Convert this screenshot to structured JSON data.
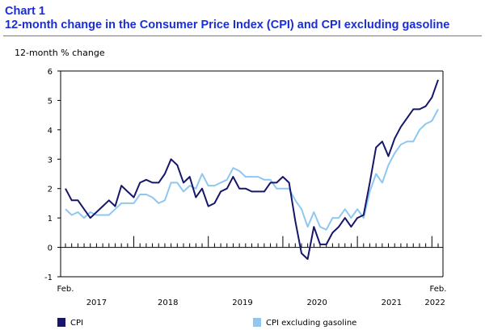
{
  "header": {
    "chart_number": "Chart 1",
    "title": "12-month change in the Consumer Price Index (CPI) and CPI excluding gasoline"
  },
  "colors": {
    "cpi": "#16166b",
    "cpi_ex_gas": "#8ec8f0",
    "axis": "#000000",
    "title": "#1a2ed6"
  },
  "chart_data": {
    "type": "line",
    "ylabel": "12-month % change",
    "ylim": [
      -1,
      6
    ],
    "yticks": [
      -1,
      0,
      1,
      2,
      3,
      4,
      5,
      6
    ],
    "grid": false,
    "legend_position": "bottom",
    "x": [
      "2017-02",
      "2017-03",
      "2017-04",
      "2017-05",
      "2017-06",
      "2017-07",
      "2017-08",
      "2017-09",
      "2017-10",
      "2017-11",
      "2017-12",
      "2018-01",
      "2018-02",
      "2018-03",
      "2018-04",
      "2018-05",
      "2018-06",
      "2018-07",
      "2018-08",
      "2018-09",
      "2018-10",
      "2018-11",
      "2018-12",
      "2019-01",
      "2019-02",
      "2019-03",
      "2019-04",
      "2019-05",
      "2019-06",
      "2019-07",
      "2019-08",
      "2019-09",
      "2019-10",
      "2019-11",
      "2019-12",
      "2020-01",
      "2020-02",
      "2020-03",
      "2020-04",
      "2020-05",
      "2020-06",
      "2020-07",
      "2020-08",
      "2020-09",
      "2020-10",
      "2020-11",
      "2020-12",
      "2021-01",
      "2021-02",
      "2021-03",
      "2021-04",
      "2021-05",
      "2021-06",
      "2021-07",
      "2021-08",
      "2021-09",
      "2021-10",
      "2021-11",
      "2021-12",
      "2022-01",
      "2022-02"
    ],
    "x_tick_labels": [
      {
        "month": "2017-02",
        "text": "Feb."
      },
      {
        "month": "2022-02",
        "text": "Feb."
      }
    ],
    "year_labels": [
      {
        "year": "2017",
        "text": "2017"
      },
      {
        "year": "2018",
        "text": "2018"
      },
      {
        "year": "2019",
        "text": "2019"
      },
      {
        "year": "2020",
        "text": "2020"
      },
      {
        "year": "2021",
        "text": "2021"
      },
      {
        "year": "2022",
        "text": "2022"
      }
    ],
    "series": [
      {
        "name": "CPI",
        "values": [
          2.0,
          1.6,
          1.6,
          1.3,
          1.0,
          1.2,
          1.4,
          1.6,
          1.4,
          2.1,
          1.9,
          1.7,
          2.2,
          2.3,
          2.2,
          2.2,
          2.5,
          3.0,
          2.8,
          2.2,
          2.4,
          1.7,
          2.0,
          1.4,
          1.5,
          1.9,
          2.0,
          2.4,
          2.0,
          2.0,
          1.9,
          1.9,
          1.9,
          2.2,
          2.2,
          2.4,
          2.2,
          0.9,
          -0.2,
          -0.4,
          0.7,
          0.1,
          0.1,
          0.5,
          0.7,
          1.0,
          0.7,
          1.0,
          1.1,
          2.2,
          3.4,
          3.6,
          3.1,
          3.7,
          4.1,
          4.4,
          4.7,
          4.7,
          4.8,
          5.1,
          5.7
        ]
      },
      {
        "name": "CPI excluding gasoline",
        "values": [
          1.3,
          1.1,
          1.2,
          1.0,
          1.2,
          1.1,
          1.1,
          1.1,
          1.3,
          1.5,
          1.5,
          1.5,
          1.8,
          1.8,
          1.7,
          1.5,
          1.6,
          2.2,
          2.2,
          1.9,
          2.1,
          2.0,
          2.5,
          2.1,
          2.1,
          2.2,
          2.3,
          2.7,
          2.6,
          2.4,
          2.4,
          2.4,
          2.3,
          2.3,
          2.0,
          2.0,
          2.0,
          1.6,
          1.3,
          0.7,
          1.2,
          0.7,
          0.6,
          1.0,
          1.0,
          1.3,
          1.0,
          1.3,
          1.0,
          1.9,
          2.5,
          2.2,
          2.8,
          3.2,
          3.5,
          3.6,
          3.6,
          4.0,
          4.2,
          4.3,
          4.7
        ]
      }
    ]
  }
}
